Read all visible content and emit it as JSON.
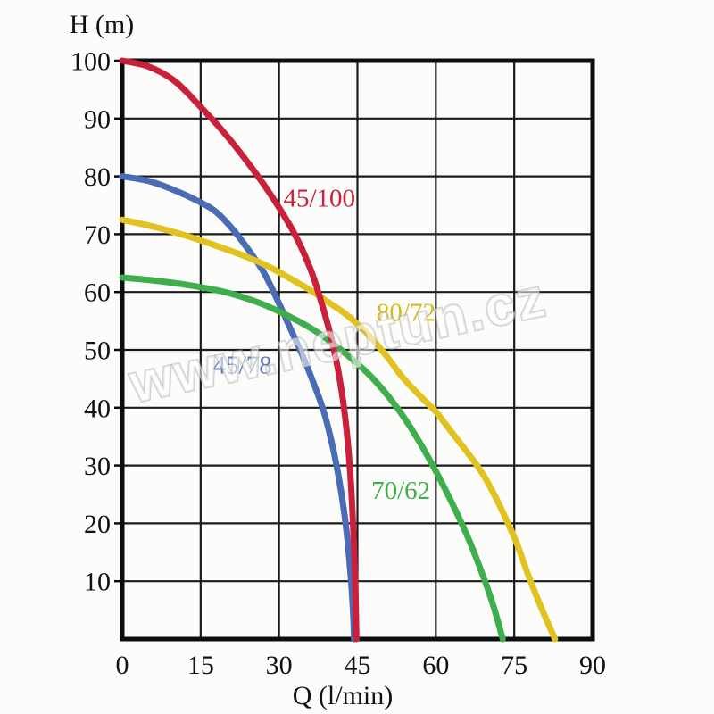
{
  "watermark": "www.neptun.cz",
  "chart_data": {
    "type": "line",
    "title": "",
    "xlabel": "Q (l/min)",
    "ylabel": "H (m)",
    "xlim": [
      0,
      90
    ],
    "ylim": [
      0,
      100
    ],
    "x_ticks": [
      0,
      15,
      30,
      45,
      60,
      75,
      90
    ],
    "y_ticks": [
      10,
      20,
      30,
      40,
      50,
      60,
      70,
      80,
      90,
      100
    ],
    "grid": true,
    "grid_color": "#1b1b1b",
    "border_color": "#0d0d0d",
    "legend_position": "inline-labels",
    "series": [
      {
        "name": "45/78",
        "color": "#4a6cb4",
        "label_color": "#5f79b8",
        "label_anchor": [
          23,
          47.5
        ],
        "points": [
          [
            0,
            80
          ],
          [
            5,
            79.2
          ],
          [
            10,
            77.6
          ],
          [
            15,
            75.5
          ],
          [
            18,
            73.8
          ],
          [
            21,
            71
          ],
          [
            24,
            67.5
          ],
          [
            27,
            63.5
          ],
          [
            29.6,
            58.8
          ],
          [
            32,
            54
          ],
          [
            34.5,
            49
          ],
          [
            36.5,
            44.5
          ],
          [
            38.5,
            39.5
          ],
          [
            40.2,
            33.5
          ],
          [
            41.6,
            27
          ],
          [
            42.8,
            19.5
          ],
          [
            43.7,
            11
          ],
          [
            44.2,
            4
          ],
          [
            44.35,
            0
          ]
        ]
      },
      {
        "name": "70/62",
        "color": "#3fae4c",
        "label_color": "#3fae4c",
        "label_anchor": [
          53.3,
          25.8
        ],
        "points": [
          [
            0,
            62.5
          ],
          [
            7,
            61.9
          ],
          [
            14,
            61
          ],
          [
            20,
            59.9
          ],
          [
            26,
            58.2
          ],
          [
            31,
            56.2
          ],
          [
            36,
            53.8
          ],
          [
            40,
            51.3
          ],
          [
            44,
            48.4
          ],
          [
            48,
            45
          ],
          [
            51.5,
            41.3
          ],
          [
            55,
            36.8
          ],
          [
            58,
            32.3
          ],
          [
            61,
            27.3
          ],
          [
            64,
            21.8
          ],
          [
            66.5,
            16.8
          ],
          [
            69,
            11
          ],
          [
            71,
            5.8
          ],
          [
            72.8,
            0
          ]
        ]
      },
      {
        "name": "80/72",
        "color": "#e2c220",
        "label_color": "#d8ba1a",
        "label_anchor": [
          54.3,
          56.6
        ],
        "points": [
          [
            0,
            72.5
          ],
          [
            6,
            71.3
          ],
          [
            12,
            69.8
          ],
          [
            18,
            68
          ],
          [
            24,
            66
          ],
          [
            28,
            64.4
          ],
          [
            32,
            62.4
          ],
          [
            36,
            60.3
          ],
          [
            39.5,
            58.2
          ],
          [
            43,
            56
          ],
          [
            47,
            52.7
          ],
          [
            50.5,
            49
          ],
          [
            53.6,
            45.3
          ],
          [
            57,
            42
          ],
          [
            60,
            39.3
          ],
          [
            63,
            35.8
          ],
          [
            66,
            32.3
          ],
          [
            68.5,
            29.2
          ],
          [
            71,
            25.3
          ],
          [
            73.3,
            21
          ],
          [
            75.5,
            16.5
          ],
          [
            77.7,
            11
          ],
          [
            80,
            5.8
          ],
          [
            82.8,
            0
          ]
        ]
      },
      {
        "name": "45/100",
        "color": "#c9203b",
        "label_color": "#c9203b",
        "label_anchor": [
          37.7,
          76.3
        ],
        "points": [
          [
            0,
            100
          ],
          [
            5,
            99
          ],
          [
            10,
            96.5
          ],
          [
            15,
            92
          ],
          [
            20,
            87
          ],
          [
            25,
            81.2
          ],
          [
            29,
            76
          ],
          [
            33,
            70
          ],
          [
            36,
            64
          ],
          [
            38,
            58.5
          ],
          [
            40,
            52
          ],
          [
            41.5,
            45.5
          ],
          [
            42.7,
            38
          ],
          [
            43.6,
            29
          ],
          [
            44.2,
            19
          ],
          [
            44.6,
            9
          ],
          [
            44.8,
            0
          ]
        ]
      }
    ]
  }
}
